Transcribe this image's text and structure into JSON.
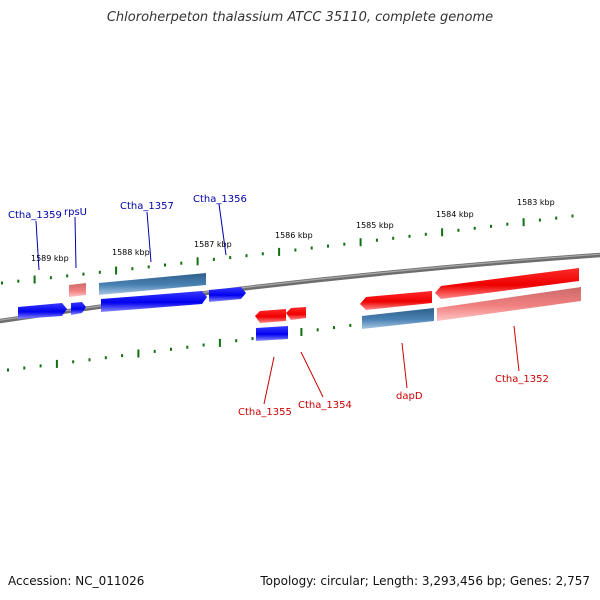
{
  "title": "Chloroherpeton thalassium ATCC 35110, complete genome",
  "footer": {
    "accession": "Accession: NC_011026",
    "summary": "Topology: circular; Length: 3,293,456 bp; Genes: 2,757"
  },
  "colors": {
    "backbone": "#808080",
    "forward_cds": "#0000ee",
    "forward_rna": "#4a82b4",
    "reverse_cds": "#ee0000",
    "reverse_rna": "#f08080",
    "tick": "#107010",
    "forward_label": "#0000aa",
    "reverse_label": "#cc0000"
  },
  "scale_labels": [
    {
      "text": "1589 kbp"
    },
    {
      "text": "1588 kbp"
    },
    {
      "text": "1587 kbp"
    },
    {
      "text": "1586 kbp"
    },
    {
      "text": "1585 kbp"
    },
    {
      "text": "1584 kbp"
    },
    {
      "text": "1583 kbp"
    }
  ],
  "gene_labels": [
    {
      "text": "Ctha_1359",
      "strand": "forward"
    },
    {
      "text": "rpsU",
      "strand": "forward"
    },
    {
      "text": "Ctha_1357",
      "strand": "forward"
    },
    {
      "text": "Ctha_1356",
      "strand": "forward"
    },
    {
      "text": "Ctha_1355",
      "strand": "reverse"
    },
    {
      "text": "Ctha_1354",
      "strand": "reverse"
    },
    {
      "text": "dapD",
      "strand": "reverse"
    },
    {
      "text": "Ctha_1352",
      "strand": "reverse"
    }
  ]
}
